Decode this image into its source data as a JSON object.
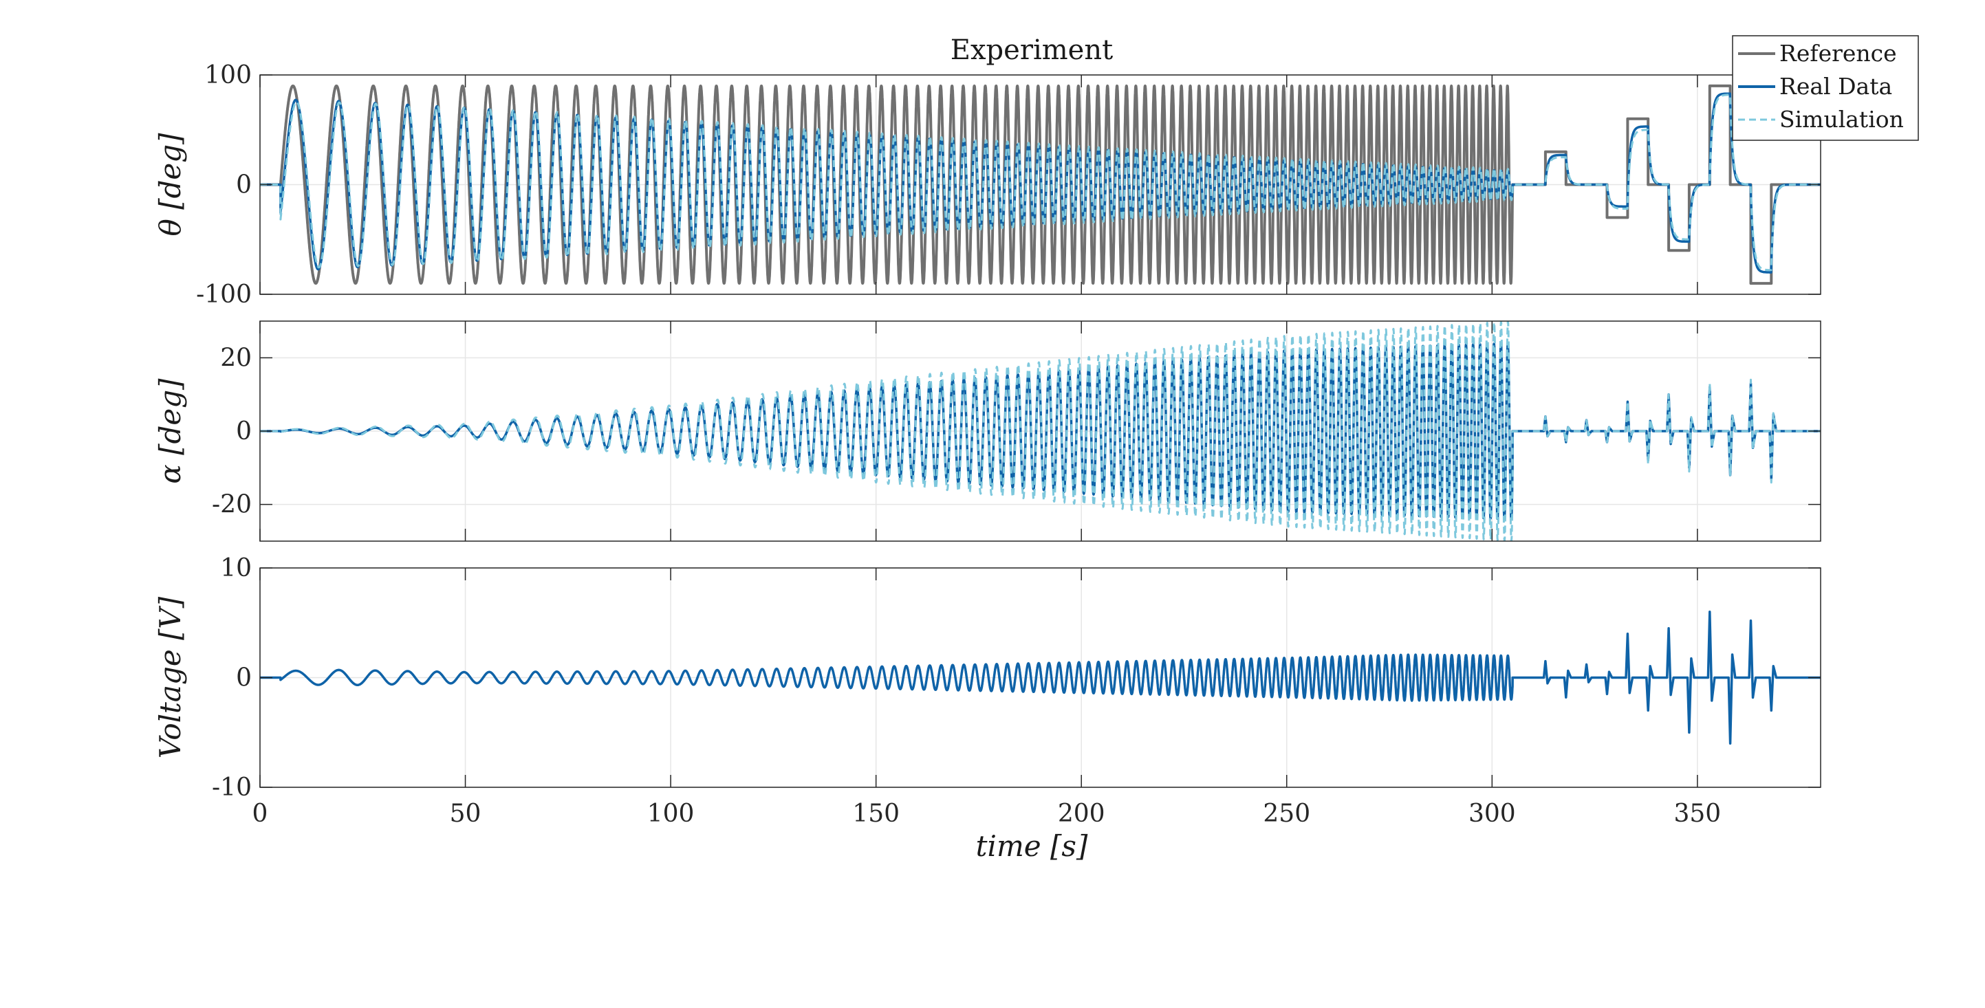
{
  "chart_data": {
    "type": "line",
    "title": "Experiment",
    "xlabel": "time [s]",
    "xlim": [
      0,
      380
    ],
    "xticks": [
      0,
      50,
      100,
      150,
      200,
      250,
      300,
      350
    ],
    "grid": true,
    "colors": {
      "reference": "#707070",
      "real": "#0f63a8",
      "sim": "#7ec8dd"
    },
    "legend": {
      "position": "top-right",
      "entries": [
        "Reference",
        "Real Data",
        "Simulation"
      ]
    },
    "subplots": [
      {
        "id": "theta",
        "ylabel": "θ [deg]",
        "ylim": [
          -100,
          100
        ],
        "yticks": [
          -100,
          0,
          100
        ],
        "series": [
          {
            "name": "Reference",
            "chirp": {
              "t_start": 5,
              "t_end": 305,
              "amplitude": 90,
              "f0": 0.08,
              "f1": 0.6
            },
            "steps": [
              [
                305,
                0
              ],
              [
                313,
                30
              ],
              [
                318,
                0
              ],
              [
                323,
                0
              ],
              [
                328,
                -30
              ],
              [
                333,
                60
              ],
              [
                338,
                0
              ],
              [
                343,
                -60
              ],
              [
                348,
                0
              ],
              [
                353,
                90
              ],
              [
                358,
                0
              ],
              [
                363,
                -90
              ],
              [
                368,
                0
              ],
              [
                380,
                0
              ]
            ]
          },
          {
            "name": "Real Data",
            "envelope": {
              "t": [
                5,
                10,
                50,
                100,
                150,
                200,
                250,
                305
              ],
              "amp": [
                75,
                78,
                70,
                58,
                45,
                33,
                22,
                12
              ]
            },
            "steps": [
              [
                305,
                0
              ],
              [
                313,
                27
              ],
              [
                318,
                0
              ],
              [
                323,
                0
              ],
              [
                328,
                -20
              ],
              [
                333,
                53
              ],
              [
                338,
                0
              ],
              [
                343,
                -52
              ],
              [
                348,
                0
              ],
              [
                353,
                83
              ],
              [
                358,
                0
              ],
              [
                363,
                -80
              ],
              [
                368,
                0
              ],
              [
                380,
                0
              ]
            ]
          },
          {
            "name": "Simulation",
            "envelope": {
              "t": [
                5,
                10,
                50,
                100,
                150,
                200,
                250,
                305
              ],
              "amp": [
                73,
                76,
                71,
                60,
                47,
                35,
                24,
                14
              ]
            },
            "steps": [
              [
                305,
                0
              ],
              [
                313,
                25
              ],
              [
                318,
                0
              ],
              [
                323,
                0
              ],
              [
                328,
                -22
              ],
              [
                333,
                50
              ],
              [
                338,
                0
              ],
              [
                343,
                -50
              ],
              [
                348,
                0
              ],
              [
                353,
                82
              ],
              [
                358,
                0
              ],
              [
                363,
                -78
              ],
              [
                368,
                0
              ],
              [
                380,
                0
              ]
            ]
          }
        ]
      },
      {
        "id": "alpha",
        "ylabel": "α [deg]",
        "ylim": [
          -30,
          30
        ],
        "yticks": [
          -20,
          0,
          20
        ],
        "series": [
          {
            "name": "Real Data",
            "envelope": {
              "t": [
                5,
                50,
                100,
                150,
                200,
                250,
                305
              ],
              "amp": [
                0.3,
                1.5,
                6,
                12,
                17,
                22,
                24
              ]
            },
            "spikes": [
              [
                313,
                4
              ],
              [
                318,
                -3
              ],
              [
                323,
                3
              ],
              [
                328,
                -3
              ],
              [
                333,
                8
              ],
              [
                338,
                -8
              ],
              [
                343,
                10
              ],
              [
                348,
                -10
              ],
              [
                353,
                12
              ],
              [
                358,
                -12
              ],
              [
                363,
                13
              ],
              [
                368,
                -13
              ]
            ]
          },
          {
            "name": "Simulation",
            "envelope": {
              "t": [
                5,
                50,
                100,
                150,
                200,
                250,
                305
              ],
              "amp": [
                0.4,
                2,
                7,
                14,
                20,
                26,
                30
              ]
            },
            "spikes": [
              [
                313,
                4
              ],
              [
                318,
                -3
              ],
              [
                323,
                3
              ],
              [
                328,
                -3
              ],
              [
                333,
                8
              ],
              [
                338,
                -9
              ],
              [
                343,
                10
              ],
              [
                348,
                -11
              ],
              [
                353,
                13
              ],
              [
                358,
                -12
              ],
              [
                363,
                14
              ],
              [
                368,
                -14
              ]
            ]
          }
        ]
      },
      {
        "id": "voltage",
        "ylabel": "Voltage [V]",
        "ylim": [
          -10,
          10
        ],
        "yticks": [
          -10,
          0,
          10
        ],
        "series": [
          {
            "name": "Real Data",
            "envelope": {
              "t": [
                5,
                20,
                50,
                100,
                150,
                200,
                250,
                280,
                305
              ],
              "amp": [
                0.6,
                0.7,
                0.5,
                0.6,
                1.0,
                1.4,
                1.8,
                2.1,
                2.0
              ]
            },
            "spikes": [
              [
                313,
                1.5
              ],
              [
                318,
                -1.8
              ],
              [
                323,
                1.2
              ],
              [
                328,
                -1.5
              ],
              [
                333,
                4.0
              ],
              [
                338,
                -3.0
              ],
              [
                343,
                4.5
              ],
              [
                348,
                -5.0
              ],
              [
                353,
                6.0
              ],
              [
                358,
                -6.0
              ],
              [
                363,
                5.2
              ],
              [
                368,
                -3.0
              ]
            ]
          }
        ]
      }
    ]
  }
}
